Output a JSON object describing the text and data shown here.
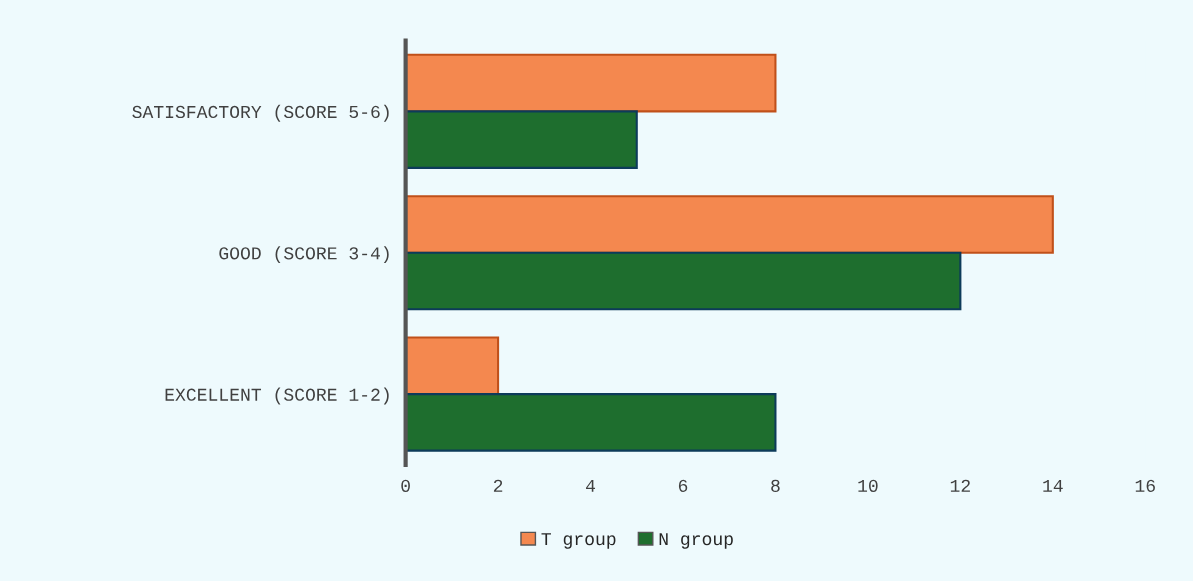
{
  "chart_data": {
    "type": "bar",
    "orientation": "horizontal",
    "categories": [
      "SATISFACTORY (SCORE 5-6)",
      "GOOD (SCORE 3-4)",
      "EXCELLENT (SCORE 1-2)"
    ],
    "series": [
      {
        "name": "T group",
        "color": "#f4884f",
        "values": [
          8,
          14,
          2
        ]
      },
      {
        "name": "N group",
        "color": "#1e6e2e",
        "values": [
          5,
          12,
          8
        ]
      }
    ],
    "xlim": [
      0,
      16
    ],
    "xticks": [
      0,
      2,
      4,
      6,
      8,
      10,
      12,
      14,
      16
    ],
    "grid": false,
    "legend": "bottom"
  }
}
